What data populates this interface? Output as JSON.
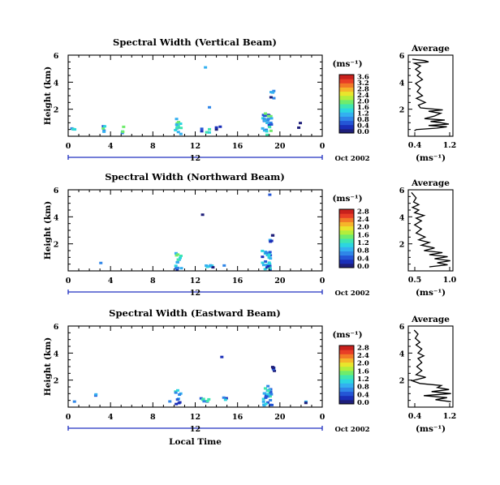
{
  "colors": [
    "#1e1e7a",
    "#1a2fb8",
    "#2456d6",
    "#2f86e8",
    "#33b0f0",
    "#2cd6e0",
    "#3fe6b0",
    "#6fec6c",
    "#b2ee3c",
    "#e9e52c",
    "#f6b52a",
    "#f27a27",
    "#e83e26",
    "#c8201c"
  ],
  "footer": {
    "xlabel": "Local Time"
  },
  "panels": [
    {
      "title": "Spectral Width (Vertical Beam)",
      "ylabel": "Height (km)",
      "unit": "(ms⁻¹)",
      "avg_title": "Average",
      "avg_xlabel": "(ms⁻¹)",
      "avg_xticks": [
        "0.4",
        "1.2"
      ],
      "avg_xlim": [
        0.2,
        1.3
      ],
      "date_label": "12",
      "month_label": "Oct 2002",
      "xticks": [
        "0",
        "4",
        "8",
        "12",
        "16",
        "20",
        "0"
      ],
      "yticks": [
        "2",
        "4",
        "6"
      ],
      "cbar_ticks": [
        "0.0",
        "0.4",
        "0.8",
        "1.2",
        "1.6",
        "2.0",
        "2.4",
        "2.8",
        "3.2",
        "3.6"
      ],
      "cbar_max": 3.6,
      "avg_profile": [
        [
          0.35,
          0.4
        ],
        [
          0.4,
          0.5
        ],
        [
          0.9,
          0.6
        ],
        [
          1.15,
          0.7
        ],
        [
          0.7,
          0.8
        ],
        [
          1.2,
          0.9
        ],
        [
          1.0,
          1.0
        ],
        [
          0.75,
          1.1
        ],
        [
          1.1,
          1.2
        ],
        [
          0.6,
          1.3
        ],
        [
          0.85,
          1.5
        ],
        [
          1.0,
          1.7
        ],
        [
          0.7,
          1.85
        ],
        [
          1.05,
          1.95
        ],
        [
          0.5,
          2.1
        ],
        [
          0.45,
          2.3
        ],
        [
          0.62,
          2.5
        ],
        [
          0.4,
          2.8
        ],
        [
          0.55,
          3.0
        ],
        [
          0.42,
          3.3
        ],
        [
          0.5,
          3.6
        ],
        [
          0.38,
          3.9
        ],
        [
          0.55,
          4.2
        ],
        [
          0.42,
          4.5
        ],
        [
          0.5,
          4.7
        ],
        [
          0.38,
          4.95
        ],
        [
          0.5,
          5.2
        ],
        [
          0.35,
          5.4
        ],
        [
          0.7,
          5.5
        ],
        [
          0.6,
          5.6
        ],
        [
          0.3,
          5.7
        ]
      ],
      "blobs": [
        {
          "x": 0.6,
          "h": 0.45,
          "w": 0.5,
          "dh": 0.15,
          "n": 4,
          "c": 2.0
        },
        {
          "x": 3.2,
          "h": 0.6,
          "w": 0.6,
          "dh": 0.35,
          "n": 5,
          "c": 2.1
        },
        {
          "x": 5.2,
          "h": 0.45,
          "w": 0.5,
          "dh": 0.3,
          "n": 4,
          "c": 2.2
        },
        {
          "x": 10.4,
          "h": 0.75,
          "w": 0.6,
          "dh": 0.65,
          "n": 14,
          "c": 2.3
        },
        {
          "x": 13.0,
          "h": 0.4,
          "w": 0.9,
          "dh": 0.15,
          "n": 6,
          "c": 1.6
        },
        {
          "x": 14.2,
          "h": 0.6,
          "w": 0.4,
          "dh": 0.2,
          "n": 3,
          "c": 1.4
        },
        {
          "x": 18.8,
          "h": 0.9,
          "w": 0.9,
          "dh": 0.8,
          "n": 30,
          "c": 2.0
        },
        {
          "x": 19.3,
          "h": 3.1,
          "w": 0.3,
          "dh": 0.3,
          "n": 5,
          "c": 0.9
        },
        {
          "x": 21.9,
          "h": 0.8,
          "w": 0.3,
          "dh": 0.2,
          "n": 2,
          "c": 0.6
        },
        {
          "x": 13.4,
          "h": 2.2,
          "w": 0.15,
          "dh": 0.1,
          "n": 1,
          "c": 0.8
        },
        {
          "x": 13.0,
          "h": 5.1,
          "w": 0.12,
          "dh": 0.08,
          "n": 1,
          "c": 0.6
        }
      ]
    },
    {
      "title": "Spectral Width (Northward Beam)",
      "ylabel": "Height (km)",
      "unit": "(ms⁻¹)",
      "avg_title": "Average",
      "avg_xlabel": "(ms⁻¹)",
      "avg_xticks": [
        "0.5",
        "1.0"
      ],
      "avg_xlim": [
        0.3,
        1.15
      ],
      "date_label": "12",
      "month_label": "Oct 2002",
      "xticks": [
        "0",
        "4",
        "8",
        "12",
        "16",
        "20",
        "0"
      ],
      "yticks": [
        "2",
        "4",
        "6"
      ],
      "cbar_ticks": [
        "0.0",
        "0.4",
        "0.8",
        "1.2",
        "1.6",
        "2.0",
        "2.4",
        "2.8"
      ],
      "cbar_max": 2.8,
      "avg_profile": [
        [
          0.7,
          0.3
        ],
        [
          1.05,
          0.45
        ],
        [
          0.85,
          0.6
        ],
        [
          1.1,
          0.75
        ],
        [
          0.8,
          0.9
        ],
        [
          1.05,
          1.05
        ],
        [
          0.7,
          1.2
        ],
        [
          0.95,
          1.35
        ],
        [
          0.6,
          1.5
        ],
        [
          0.8,
          1.7
        ],
        [
          0.55,
          1.9
        ],
        [
          0.7,
          2.1
        ],
        [
          0.5,
          2.3
        ],
        [
          0.62,
          2.5
        ],
        [
          0.45,
          2.8
        ],
        [
          0.55,
          3.1
        ],
        [
          0.42,
          3.4
        ],
        [
          0.55,
          3.7
        ],
        [
          0.45,
          3.9
        ],
        [
          0.6,
          4.1
        ],
        [
          0.42,
          4.3
        ],
        [
          0.5,
          4.5
        ],
        [
          0.38,
          4.7
        ],
        [
          0.5,
          4.9
        ],
        [
          0.4,
          5.1
        ],
        [
          0.45,
          5.4
        ],
        [
          0.36,
          5.8
        ]
      ],
      "blobs": [
        {
          "x": 3.1,
          "h": 0.55,
          "w": 0.2,
          "dh": 0.1,
          "n": 1,
          "c": 0.9
        },
        {
          "x": 10.4,
          "h": 0.75,
          "w": 0.6,
          "dh": 0.65,
          "n": 14,
          "c": 2.2
        },
        {
          "x": 13.2,
          "h": 0.3,
          "w": 1.0,
          "dh": 0.12,
          "n": 6,
          "c": 1.2
        },
        {
          "x": 14.8,
          "h": 0.45,
          "w": 0.2,
          "dh": 0.1,
          "n": 1,
          "c": 0.7
        },
        {
          "x": 18.7,
          "h": 0.85,
          "w": 0.9,
          "dh": 0.75,
          "n": 28,
          "c": 1.8
        },
        {
          "x": 19.2,
          "h": 2.4,
          "w": 0.3,
          "dh": 0.25,
          "n": 5,
          "c": 0.8
        },
        {
          "x": 12.7,
          "h": 4.2,
          "w": 0.12,
          "dh": 0.08,
          "n": 1,
          "c": 0.6
        },
        {
          "x": 19.1,
          "h": 5.7,
          "w": 0.12,
          "dh": 0.08,
          "n": 1,
          "c": 0.6
        }
      ]
    },
    {
      "title": "Spectral Width (Eastward Beam)",
      "ylabel": "Height (km)",
      "unit": "(ms⁻¹)",
      "avg_title": "Average",
      "avg_xlabel": "(ms⁻¹)",
      "avg_xticks": [
        "0.4",
        "1.2"
      ],
      "avg_xlim": [
        0.2,
        1.35
      ],
      "date_label": "12",
      "month_label": "Oct 2002",
      "xticks": [
        "0",
        "4",
        "8",
        "12",
        "16",
        "20",
        "0"
      ],
      "yticks": [
        "2",
        "4",
        "6"
      ],
      "cbar_ticks": [
        "0.0",
        "0.4",
        "0.8",
        "1.2",
        "1.6",
        "2.0",
        "2.4",
        "2.8"
      ],
      "cbar_max": 2.8,
      "avg_profile": [
        [
          1.3,
          0.4
        ],
        [
          0.9,
          0.55
        ],
        [
          1.2,
          0.7
        ],
        [
          0.6,
          0.85
        ],
        [
          1.3,
          1.0
        ],
        [
          0.8,
          1.15
        ],
        [
          1.25,
          1.3
        ],
        [
          0.95,
          1.45
        ],
        [
          1.05,
          1.6
        ],
        [
          0.5,
          1.75
        ],
        [
          0.3,
          1.95
        ],
        [
          0.5,
          2.1
        ],
        [
          0.65,
          2.2
        ],
        [
          0.4,
          2.4
        ],
        [
          0.55,
          2.7
        ],
        [
          0.42,
          3.0
        ],
        [
          0.55,
          3.3
        ],
        [
          0.45,
          3.6
        ],
        [
          0.6,
          3.8
        ],
        [
          0.45,
          4.0
        ],
        [
          0.55,
          4.3
        ],
        [
          0.4,
          4.6
        ],
        [
          0.5,
          4.8
        ],
        [
          0.38,
          5.1
        ],
        [
          0.45,
          5.4
        ],
        [
          0.35,
          5.7
        ]
      ],
      "blobs": [
        {
          "x": 0.6,
          "h": 0.35,
          "w": 0.2,
          "dh": 0.1,
          "n": 1,
          "c": 0.9
        },
        {
          "x": 2.6,
          "h": 0.8,
          "w": 0.2,
          "dh": 0.15,
          "n": 2,
          "c": 1.2
        },
        {
          "x": 10.4,
          "h": 0.75,
          "w": 0.5,
          "dh": 0.6,
          "n": 10,
          "c": 1.8
        },
        {
          "x": 13.0,
          "h": 0.45,
          "w": 0.9,
          "dh": 0.2,
          "n": 8,
          "c": 2.0
        },
        {
          "x": 14.8,
          "h": 0.6,
          "w": 0.3,
          "dh": 0.15,
          "n": 3,
          "c": 1.2
        },
        {
          "x": 18.8,
          "h": 0.85,
          "w": 0.9,
          "dh": 0.75,
          "n": 28,
          "c": 2.0
        },
        {
          "x": 19.3,
          "h": 2.8,
          "w": 0.4,
          "dh": 0.3,
          "n": 6,
          "c": 0.8
        },
        {
          "x": 22.4,
          "h": 0.3,
          "w": 0.3,
          "dh": 0.1,
          "n": 2,
          "c": 0.8
        },
        {
          "x": 14.5,
          "h": 3.7,
          "w": 0.12,
          "dh": 0.08,
          "n": 1,
          "c": 0.6
        },
        {
          "x": 9.7,
          "h": 0.35,
          "w": 0.2,
          "dh": 0.1,
          "n": 1,
          "c": 0.8
        }
      ]
    }
  ],
  "chart_data": [
    {
      "type": "heatmap",
      "title": "Spectral Width (Vertical Beam)",
      "xlabel": "",
      "ylabel": "Height (km)",
      "xlim": [
        0,
        24
      ],
      "ylim": [
        0,
        6
      ],
      "x_ticks": [
        "0",
        "4",
        "8",
        "12",
        "16",
        "20",
        "0"
      ],
      "y_ticks": [
        "2",
        "4",
        "6"
      ],
      "colorbar": {
        "label": "(ms⁻¹)",
        "min": 0,
        "max": 3.6,
        "ticks": [
          0.0,
          0.4,
          0.8,
          1.2,
          1.6,
          2.0,
          2.4,
          2.8,
          3.2,
          3.6
        ]
      },
      "date": "12 Oct 2002",
      "echo_regions": [
        {
          "local_time": 10.4,
          "height_km": 0.75
        },
        {
          "local_time": 13.0,
          "height_km": 0.4
        },
        {
          "local_time": 18.8,
          "height_km": 0.9
        },
        {
          "local_time": 19.3,
          "height_km": 3.1
        },
        {
          "local_time": 13.4,
          "height_km": 2.2
        },
        {
          "local_time": 13.0,
          "height_km": 5.1
        }
      ]
    },
    {
      "type": "line",
      "title": "Average",
      "xlabel": "(ms⁻¹)",
      "ylabel": "Height (km)",
      "xlim": [
        0.2,
        1.3
      ],
      "ylim": [
        0,
        6
      ],
      "x_ticks": [
        "0.4",
        "1.2"
      ],
      "y_ticks": [
        "2",
        "4",
        "6"
      ]
    },
    {
      "type": "heatmap",
      "title": "Spectral Width (Northward Beam)",
      "xlabel": "",
      "ylabel": "Height (km)",
      "xlim": [
        0,
        24
      ],
      "ylim": [
        0,
        6
      ],
      "x_ticks": [
        "0",
        "4",
        "8",
        "12",
        "16",
        "20",
        "0"
      ],
      "y_ticks": [
        "2",
        "4",
        "6"
      ],
      "colorbar": {
        "label": "(ms⁻¹)",
        "min": 0,
        "max": 2.8,
        "ticks": [
          0.0,
          0.4,
          0.8,
          1.2,
          1.6,
          2.0,
          2.4,
          2.8
        ]
      },
      "date": "12 Oct 2002",
      "echo_regions": [
        {
          "local_time": 10.4,
          "height_km": 0.75
        },
        {
          "local_time": 13.2,
          "height_km": 0.3
        },
        {
          "local_time": 18.7,
          "height_km": 0.85
        },
        {
          "local_time": 19.2,
          "height_km": 2.4
        },
        {
          "local_time": 12.7,
          "height_km": 4.2
        },
        {
          "local_time": 19.1,
          "height_km": 5.7
        }
      ]
    },
    {
      "type": "line",
      "title": "Average",
      "xlabel": "(ms⁻¹)",
      "ylabel": "Height (km)",
      "xlim": [
        0.3,
        1.15
      ],
      "ylim": [
        0,
        6
      ],
      "x_ticks": [
        "0.5",
        "1.0"
      ],
      "y_ticks": [
        "2",
        "4",
        "6"
      ]
    },
    {
      "type": "heatmap",
      "title": "Spectral Width (Eastward Beam)",
      "xlabel": "Local Time",
      "ylabel": "Height (km)",
      "xlim": [
        0,
        24
      ],
      "ylim": [
        0,
        6
      ],
      "x_ticks": [
        "0",
        "4",
        "8",
        "12",
        "16",
        "20",
        "0"
      ],
      "y_ticks": [
        "2",
        "4",
        "6"
      ],
      "colorbar": {
        "label": "(ms⁻¹)",
        "min": 0,
        "max": 2.8,
        "ticks": [
          0.0,
          0.4,
          0.8,
          1.2,
          1.6,
          2.0,
          2.4,
          2.8
        ]
      },
      "date": "12 Oct 2002",
      "echo_regions": [
        {
          "local_time": 10.4,
          "height_km": 0.75
        },
        {
          "local_time": 13.0,
          "height_km": 0.45
        },
        {
          "local_time": 18.8,
          "height_km": 0.85
        },
        {
          "local_time": 19.3,
          "height_km": 2.8
        },
        {
          "local_time": 14.5,
          "height_km": 3.7
        }
      ]
    },
    {
      "type": "line",
      "title": "Average",
      "xlabel": "(ms⁻¹)",
      "ylabel": "Height (km)",
      "xlim": [
        0.2,
        1.35
      ],
      "ylim": [
        0,
        6
      ],
      "x_ticks": [
        "0.4",
        "1.2"
      ],
      "y_ticks": [
        "2",
        "4",
        "6"
      ]
    }
  ]
}
